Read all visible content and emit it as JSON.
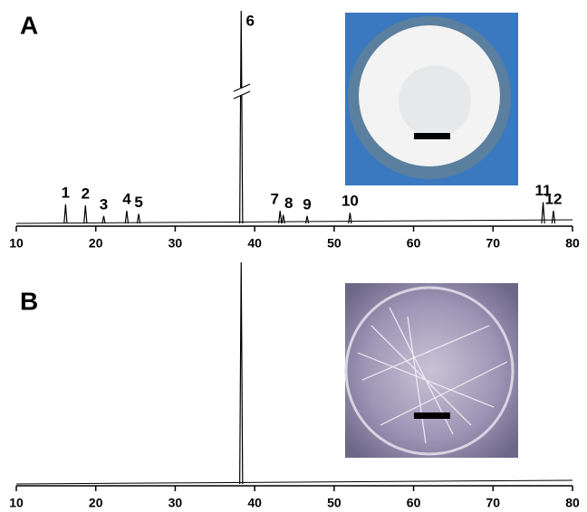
{
  "chart_data": [
    {
      "type": "chromatogram",
      "title": "A",
      "x": [
        16.2,
        18.7,
        21.0,
        23.9,
        25.4,
        38.3,
        43.2,
        43.6,
        46.6,
        52.0,
        76.3,
        77.6
      ],
      "values": [
        9,
        8.5,
        3.5,
        6,
        4.5,
        100,
        6,
        4,
        3.5,
        5,
        10,
        6
      ],
      "peak_labels": [
        "1",
        "2",
        "3",
        "4",
        "5",
        "6",
        "7",
        "8",
        "9",
        "10",
        "11",
        "12"
      ],
      "xlim": [
        10,
        80
      ],
      "xticks": [
        10,
        20,
        30,
        40,
        50,
        60,
        70,
        80
      ],
      "ylim": [
        0,
        100
      ],
      "color": "#000000"
    },
    {
      "type": "chromatogram",
      "title": "B",
      "x": [
        38.3
      ],
      "values": [
        100
      ],
      "xlim": [
        10,
        80
      ],
      "xticks": [
        10,
        20,
        30,
        40,
        50,
        60,
        70,
        80
      ],
      "ylim": [
        0,
        100
      ],
      "color": "#000000"
    }
  ]
}
